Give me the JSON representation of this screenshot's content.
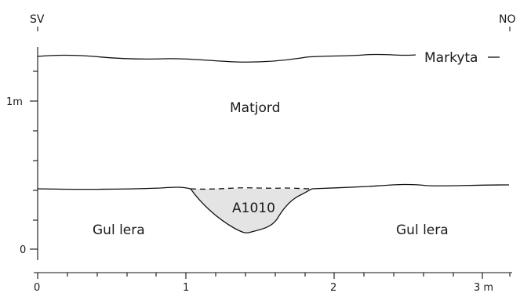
{
  "directions": {
    "left": "SV",
    "right": "NO"
  },
  "layers": {
    "surface": "Markyta",
    "topsoil": "Matjord",
    "subsoil_left": "Gul lera",
    "subsoil_right": "Gul lera"
  },
  "feature": {
    "id": "A1010",
    "fill": "#e4e4e4"
  },
  "vertical_axis": {
    "labels": [
      "1m",
      "0"
    ]
  },
  "horizontal_axis": {
    "labels": [
      "0",
      "1",
      "2",
      "3 m"
    ]
  }
}
